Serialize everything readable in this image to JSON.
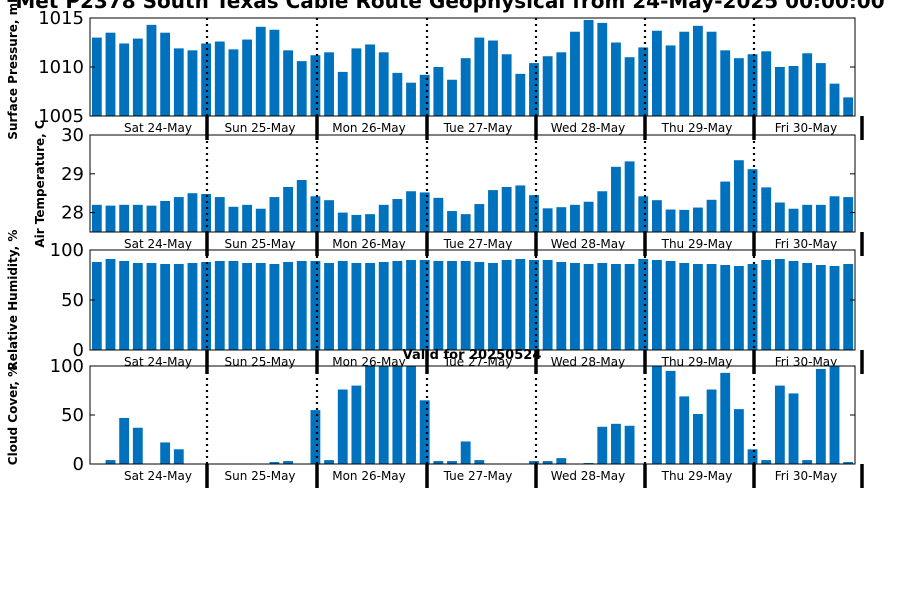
{
  "title": "Met P2378 South Texas Cable Route Geophysical from 24-May-2025 00:00:00",
  "days": [
    "Sat 24-May",
    "Sun 25-May",
    "Mon 26-May",
    "Tue 27-May",
    "Wed 28-May",
    "Thu 29-May",
    "Fri 30-May"
  ],
  "colors": {
    "bar": "#0072bd"
  },
  "chart_data": [
    {
      "type": "bar",
      "title": "",
      "ylabel": "Surface Pressure, mb",
      "ylim": [
        1005,
        1015
      ],
      "yticks": [
        "1005",
        "1010",
        "1015"
      ],
      "x": [
        0,
        1,
        2,
        3,
        4,
        5,
        6,
        7,
        8,
        9,
        10,
        11,
        12,
        13,
        14,
        15,
        16,
        17,
        18,
        19,
        20,
        21,
        22,
        23,
        24,
        25,
        26,
        27,
        28,
        29,
        30,
        31,
        32,
        33,
        34,
        35,
        36,
        37,
        38,
        39,
        40,
        41,
        42,
        43,
        44,
        45,
        46,
        47,
        48,
        49,
        50,
        51,
        52,
        53,
        54,
        55
      ],
      "values": [
        1013.0,
        1013.5,
        1012.4,
        1012.9,
        1014.3,
        1013.5,
        1011.9,
        1011.7,
        1012.4,
        1012.6,
        1011.8,
        1012.8,
        1014.1,
        1013.8,
        1011.7,
        1010.6,
        1011.2,
        1011.5,
        1009.5,
        1011.9,
        1012.3,
        1011.5,
        1009.4,
        1008.4,
        1009.2,
        1010.0,
        1008.7,
        1010.9,
        1013.0,
        1012.7,
        1011.3,
        1009.3,
        1010.4,
        1011.1,
        1011.5,
        1013.6,
        1014.8,
        1014.5,
        1012.5,
        1011.0,
        1012.0,
        1013.7,
        1012.2,
        1013.6,
        1014.2,
        1013.6,
        1011.7,
        1010.9,
        1011.3,
        1011.6,
        1010.0,
        1010.1,
        1011.4,
        1010.4,
        1008.3,
        1006.9
      ]
    },
    {
      "type": "bar",
      "title": "",
      "ylabel": "Air Temperature, C",
      "ylim": [
        27.5,
        30
      ],
      "yticks": [
        "28",
        "29",
        "30"
      ],
      "x": [
        0,
        1,
        2,
        3,
        4,
        5,
        6,
        7,
        8,
        9,
        10,
        11,
        12,
        13,
        14,
        15,
        16,
        17,
        18,
        19,
        20,
        21,
        22,
        23,
        24,
        25,
        26,
        27,
        28,
        29,
        30,
        31,
        32,
        33,
        34,
        35,
        36,
        37,
        38,
        39,
        40,
        41,
        42,
        43,
        44,
        45,
        46,
        47,
        48,
        49,
        50,
        51,
        52,
        53,
        54,
        55
      ],
      "values": [
        28.2,
        28.18,
        28.2,
        28.2,
        28.18,
        28.3,
        28.4,
        28.5,
        28.48,
        28.4,
        28.15,
        28.2,
        28.1,
        28.4,
        28.66,
        28.84,
        28.42,
        28.32,
        28.0,
        27.94,
        27.96,
        28.2,
        28.35,
        28.55,
        28.52,
        28.38,
        28.04,
        27.96,
        28.22,
        28.58,
        28.66,
        28.7,
        28.45,
        28.11,
        28.14,
        28.2,
        28.28,
        28.55,
        29.18,
        29.32,
        28.42,
        28.32,
        28.08,
        28.07,
        28.13,
        28.33,
        28.8,
        29.35,
        29.12,
        28.65,
        28.26,
        28.1,
        28.2,
        28.2,
        28.42,
        28.4
      ]
    },
    {
      "type": "bar",
      "title": "",
      "ylabel": "Relative Humidity, %",
      "ylim": [
        0,
        100
      ],
      "yticks": [
        "0",
        "50",
        "100"
      ],
      "x": [
        0,
        1,
        2,
        3,
        4,
        5,
        6,
        7,
        8,
        9,
        10,
        11,
        12,
        13,
        14,
        15,
        16,
        17,
        18,
        19,
        20,
        21,
        22,
        23,
        24,
        25,
        26,
        27,
        28,
        29,
        30,
        31,
        32,
        33,
        34,
        35,
        36,
        37,
        38,
        39,
        40,
        41,
        42,
        43,
        44,
        45,
        46,
        47,
        48,
        49,
        50,
        51,
        52,
        53,
        54,
        55
      ],
      "values": [
        88,
        91,
        89,
        87,
        87,
        86,
        86,
        87,
        88,
        89,
        89,
        87,
        87,
        86,
        88,
        89,
        89,
        87,
        89,
        87,
        87,
        88,
        89,
        90,
        90,
        89,
        89,
        89,
        88,
        87,
        90,
        91,
        90,
        90,
        88,
        87,
        86,
        87,
        86,
        86,
        91,
        90,
        89,
        87,
        86,
        86,
        85,
        84,
        86,
        90,
        91,
        89,
        87,
        85,
        84,
        86
      ]
    },
    {
      "type": "bar",
      "title": "Valid for 20250524",
      "ylabel": "Cloud Cover, %",
      "ylim": [
        0,
        100
      ],
      "yticks": [
        "0",
        "50",
        "100"
      ],
      "x": [
        0,
        1,
        2,
        3,
        4,
        5,
        6,
        7,
        8,
        9,
        10,
        11,
        12,
        13,
        14,
        15,
        16,
        17,
        18,
        19,
        20,
        21,
        22,
        23,
        24,
        25,
        26,
        27,
        28,
        29,
        30,
        31,
        32,
        33,
        34,
        35,
        36,
        37,
        38,
        39,
        40,
        41,
        42,
        43,
        44,
        45,
        46,
        47,
        48,
        49,
        50,
        51,
        52,
        53,
        54,
        55
      ],
      "values": [
        0,
        4,
        47,
        37,
        0,
        22,
        15,
        0,
        0,
        0,
        0,
        0,
        0,
        2,
        3,
        0,
        55,
        4,
        76,
        80,
        100,
        100,
        100,
        100,
        65,
        3,
        3,
        23,
        4,
        0,
        0,
        0,
        3,
        3,
        6,
        0,
        1,
        38,
        41,
        39,
        0,
        100,
        95,
        69,
        51,
        76,
        93,
        56,
        15,
        4,
        80,
        72,
        4,
        97,
        100,
        2
      ]
    }
  ]
}
